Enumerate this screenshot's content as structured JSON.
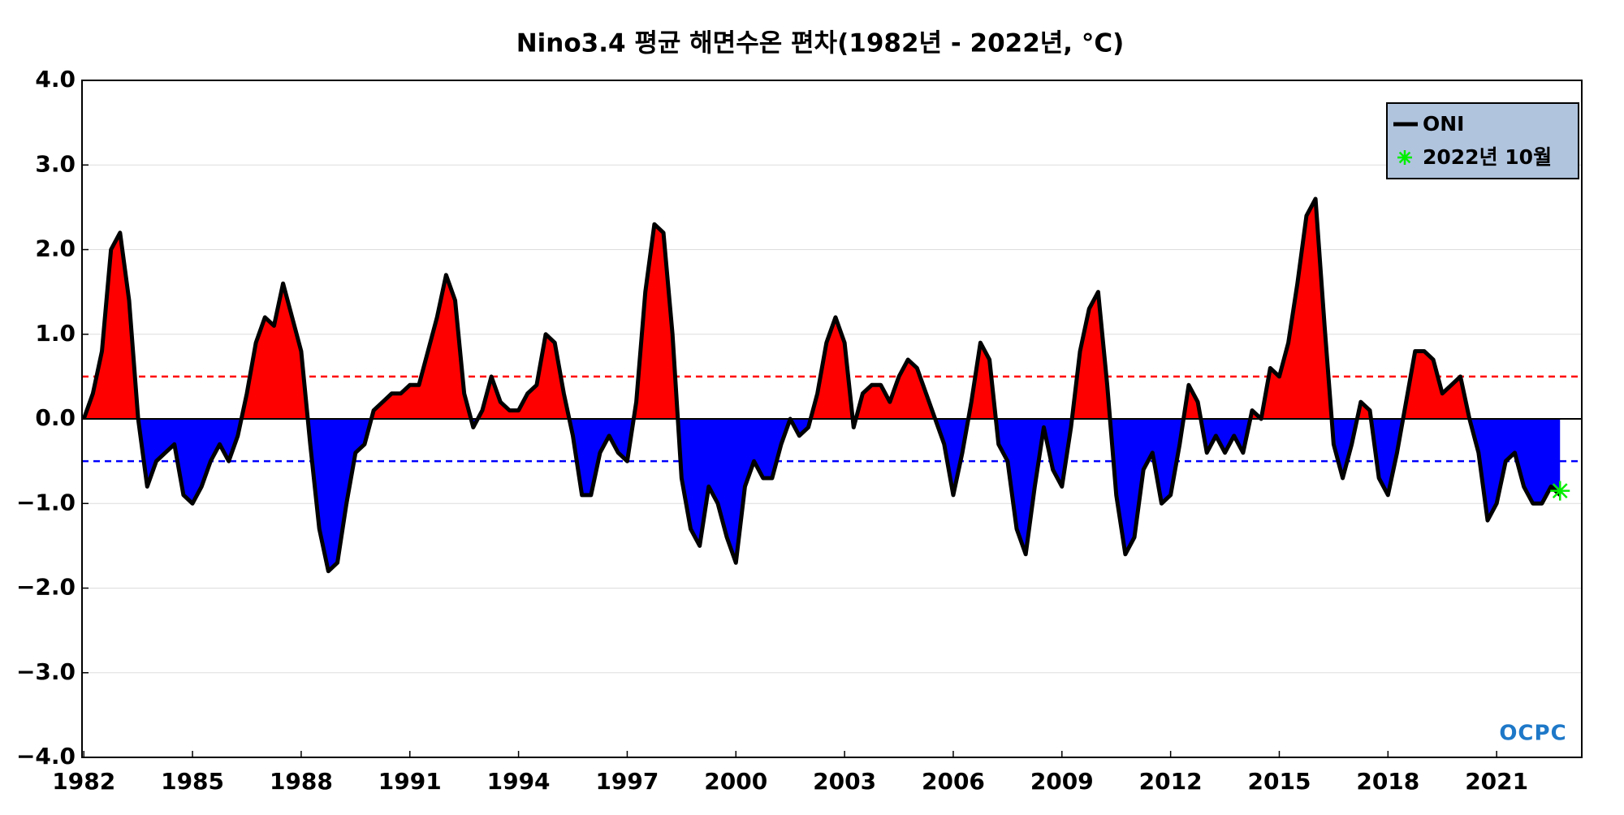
{
  "chart_data": {
    "type": "area",
    "title": "Nino3.4 평균 해면수온 편차(1982년 - 2022년, °C)",
    "x": [
      1982,
      1982.25,
      1982.5,
      1982.75,
      1983,
      1983.25,
      1983.5,
      1983.75,
      1984,
      1984.25,
      1984.5,
      1984.75,
      1985,
      1985.25,
      1985.5,
      1985.75,
      1986,
      1986.25,
      1986.5,
      1986.75,
      1987,
      1987.25,
      1987.5,
      1987.75,
      1988,
      1988.25,
      1988.5,
      1988.75,
      1989,
      1989.25,
      1989.5,
      1989.75,
      1990,
      1990.25,
      1990.5,
      1990.75,
      1991,
      1991.25,
      1991.5,
      1991.75,
      1992,
      1992.25,
      1992.5,
      1992.75,
      1993,
      1993.25,
      1993.5,
      1993.75,
      1994,
      1994.25,
      1994.5,
      1994.75,
      1995,
      1995.25,
      1995.5,
      1995.75,
      1996,
      1996.25,
      1996.5,
      1996.75,
      1997,
      1997.25,
      1997.5,
      1997.75,
      1998,
      1998.25,
      1998.5,
      1998.75,
      1999,
      1999.25,
      1999.5,
      1999.75,
      2000,
      2000.25,
      2000.5,
      2000.75,
      2001,
      2001.25,
      2001.5,
      2001.75,
      2002,
      2002.25,
      2002.5,
      2002.75,
      2003,
      2003.25,
      2003.5,
      2003.75,
      2004,
      2004.25,
      2004.5,
      2004.75,
      2005,
      2005.25,
      2005.5,
      2005.75,
      2006,
      2006.25,
      2006.5,
      2006.75,
      2007,
      2007.25,
      2007.5,
      2007.75,
      2008,
      2008.25,
      2008.5,
      2008.75,
      2009,
      2009.25,
      2009.5,
      2009.75,
      2010,
      2010.25,
      2010.5,
      2010.75,
      2011,
      2011.25,
      2011.5,
      2011.75,
      2012,
      2012.25,
      2012.5,
      2012.75,
      2013,
      2013.25,
      2013.5,
      2013.75,
      2014,
      2014.25,
      2014.5,
      2014.75,
      2015,
      2015.25,
      2015.5,
      2015.75,
      2016,
      2016.25,
      2016.5,
      2016.75,
      2017,
      2017.25,
      2017.5,
      2017.75,
      2018,
      2018.25,
      2018.5,
      2018.75,
      2019,
      2019.25,
      2019.5,
      2019.75,
      2020,
      2020.25,
      2020.5,
      2020.75,
      2021,
      2021.25,
      2021.5,
      2021.75,
      2022,
      2022.25,
      2022.5,
      2022.75
    ],
    "series": [
      {
        "name": "ONI",
        "color": "#000000",
        "values": [
          0.0,
          0.3,
          0.8,
          2.0,
          2.2,
          1.4,
          0.0,
          -0.8,
          -0.5,
          -0.4,
          -0.3,
          -0.9,
          -1.0,
          -0.8,
          -0.5,
          -0.3,
          -0.5,
          -0.2,
          0.3,
          0.9,
          1.2,
          1.1,
          1.6,
          1.2,
          0.8,
          -0.3,
          -1.3,
          -1.8,
          -1.7,
          -1.0,
          -0.4,
          -0.3,
          0.1,
          0.2,
          0.3,
          0.3,
          0.4,
          0.4,
          0.8,
          1.2,
          1.7,
          1.4,
          0.3,
          -0.1,
          0.1,
          0.5,
          0.2,
          0.1,
          0.1,
          0.3,
          0.4,
          1.0,
          0.9,
          0.3,
          -0.2,
          -0.9,
          -0.9,
          -0.4,
          -0.2,
          -0.4,
          -0.5,
          0.2,
          1.5,
          2.3,
          2.2,
          1.0,
          -0.7,
          -1.3,
          -1.5,
          -0.8,
          -1.0,
          -1.4,
          -1.7,
          -0.8,
          -0.5,
          -0.7,
          -0.7,
          -0.3,
          0.0,
          -0.2,
          -0.1,
          0.3,
          0.9,
          1.2,
          0.9,
          -0.1,
          0.3,
          0.4,
          0.4,
          0.2,
          0.5,
          0.7,
          0.6,
          0.3,
          0.0,
          -0.3,
          -0.9,
          -0.4,
          0.2,
          0.9,
          0.7,
          -0.3,
          -0.5,
          -1.3,
          -1.6,
          -0.8,
          -0.1,
          -0.6,
          -0.8,
          -0.1,
          0.8,
          1.3,
          1.5,
          0.4,
          -0.9,
          -1.6,
          -1.4,
          -0.6,
          -0.4,
          -1.0,
          -0.9,
          -0.3,
          0.4,
          0.2,
          -0.4,
          -0.2,
          -0.4,
          -0.2,
          -0.4,
          0.1,
          0.0,
          0.6,
          0.5,
          0.9,
          1.6,
          2.4,
          2.6,
          1.1,
          -0.3,
          -0.7,
          -0.3,
          0.2,
          0.1,
          -0.7,
          -0.9,
          -0.4,
          0.2,
          0.8,
          0.8,
          0.7,
          0.3,
          0.4,
          0.5,
          0.0,
          -0.4,
          -1.2,
          -1.0,
          -0.5,
          -0.4,
          -0.8,
          -1.0,
          -1.0,
          -0.8,
          -0.9
        ]
      }
    ],
    "positive_color": "#ff0000",
    "negative_color": "#0000ff",
    "marker": {
      "name": "2022년 10월",
      "x": 2022.75,
      "value": -0.85,
      "color": "#00ee00"
    },
    "thresholds": [
      {
        "value": 0.5,
        "color": "#ff0000"
      },
      {
        "value": -0.5,
        "color": "#0000ff"
      }
    ],
    "xlim": [
      1981.95,
      2023.35
    ],
    "xticks": [
      1982,
      1985,
      1988,
      1991,
      1994,
      1997,
      2000,
      2003,
      2006,
      2009,
      2012,
      2015,
      2018,
      2021
    ],
    "ylim": [
      -4,
      4
    ],
    "yticks": [
      {
        "value": -4,
        "label": "−4.0"
      },
      {
        "value": -3,
        "label": "−3.0"
      },
      {
        "value": -2,
        "label": "−2.0"
      },
      {
        "value": -1,
        "label": "−1.0"
      },
      {
        "value": 0,
        "label": "0.0"
      },
      {
        "value": 1,
        "label": "1.0"
      },
      {
        "value": 2,
        "label": "2.0"
      },
      {
        "value": 3,
        "label": "3.0"
      },
      {
        "value": 4,
        "label": "4.0"
      }
    ],
    "grid": true,
    "legend": "upper right",
    "logo": "OCPC"
  }
}
